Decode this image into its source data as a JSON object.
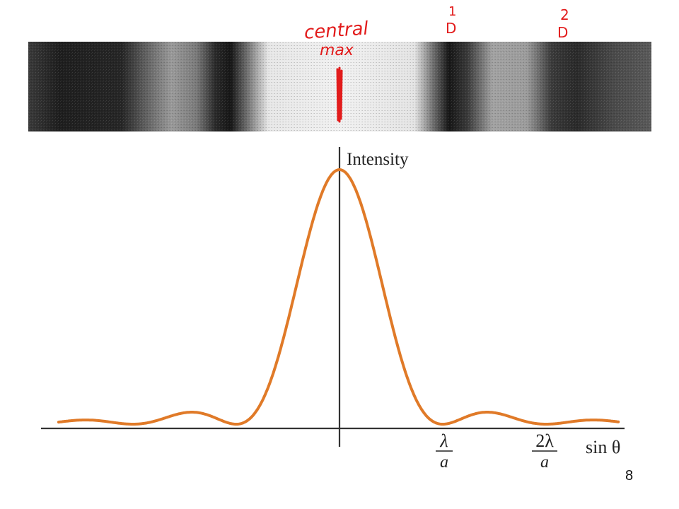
{
  "photo": {
    "description_fringes": "single-slit diffraction fringes photograph"
  },
  "annotations": {
    "central_max_line1": "central",
    "central_max_line2": "max",
    "first_min_number": "1",
    "first_min_letter": "D",
    "second_min_number": "2",
    "second_min_letter": "D",
    "ink_color": "#e21b1b"
  },
  "plot": {
    "y_axis_label": "Intensity",
    "x_axis_label": "sin θ",
    "tick_1_numerator": "λ",
    "tick_1_denominator": "a",
    "tick_2_numerator": "2λ",
    "tick_2_denominator": "a",
    "curve_color": "#e07a28"
  },
  "chart_data": {
    "type": "line",
    "title": "",
    "xlabel": "sin θ",
    "ylabel": "Intensity",
    "x_unit": "λ/a",
    "xlim": [
      -2.6,
      2.1
    ],
    "ylim": [
      0,
      1
    ],
    "series": [
      {
        "function": "sinc^2",
        "x": [
          -2.5,
          -2.0,
          -1.43,
          -1.0,
          -0.5,
          0,
          0.5,
          1.0,
          1.43,
          2.0,
          2.5
        ],
        "values": [
          0.016,
          0.0,
          0.047,
          0.0,
          0.405,
          1.0,
          0.405,
          0.0,
          0.047,
          0.0,
          0.016
        ]
      }
    ],
    "ticks": [
      {
        "x": 1,
        "label": "λ/a"
      },
      {
        "x": 2,
        "label": "2λ/a"
      }
    ]
  },
  "footer": {
    "slide_number": "8"
  }
}
